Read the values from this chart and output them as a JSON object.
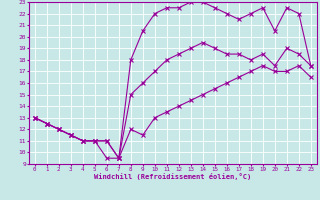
{
  "xlabel": "Windchill (Refroidissement éolien,°C)",
  "bg_color": "#c8e8e8",
  "line_color": "#990099",
  "grid_color": "#ffffff",
  "xlim": [
    -0.5,
    23.5
  ],
  "ylim": [
    9,
    23
  ],
  "xticks": [
    0,
    1,
    2,
    3,
    4,
    5,
    6,
    7,
    8,
    9,
    10,
    11,
    12,
    13,
    14,
    15,
    16,
    17,
    18,
    19,
    20,
    21,
    22,
    23
  ],
  "yticks": [
    9,
    10,
    11,
    12,
    13,
    14,
    15,
    16,
    17,
    18,
    19,
    20,
    21,
    22,
    23
  ],
  "line1_x": [
    0,
    1,
    2,
    3,
    4,
    5,
    6,
    7,
    8,
    9,
    10,
    11,
    12,
    13,
    14,
    15,
    16,
    17,
    18,
    19,
    20,
    21,
    22,
    23
  ],
  "line1_y": [
    13.0,
    12.5,
    12.0,
    11.5,
    11.0,
    11.0,
    11.0,
    9.5,
    12.0,
    11.5,
    13.0,
    13.5,
    14.0,
    14.5,
    15.0,
    15.5,
    16.0,
    16.5,
    17.0,
    17.5,
    17.0,
    17.0,
    17.5,
    16.5
  ],
  "line2_x": [
    0,
    1,
    2,
    3,
    4,
    5,
    6,
    7,
    8,
    9,
    10,
    11,
    12,
    13,
    14,
    15,
    16,
    17,
    18,
    19,
    20,
    21,
    22,
    23
  ],
  "line2_y": [
    13.0,
    12.5,
    12.0,
    11.5,
    11.0,
    11.0,
    11.0,
    9.5,
    18.0,
    20.5,
    22.0,
    22.5,
    22.5,
    23.0,
    23.0,
    22.5,
    22.0,
    21.5,
    22.0,
    22.5,
    20.5,
    22.5,
    22.0,
    17.5
  ],
  "line3_x": [
    0,
    1,
    2,
    3,
    4,
    5,
    6,
    7,
    8,
    9,
    10,
    11,
    12,
    13,
    14,
    15,
    16,
    17,
    18,
    19,
    20,
    21,
    22,
    23
  ],
  "line3_y": [
    13.0,
    12.5,
    12.0,
    11.5,
    11.0,
    11.0,
    9.5,
    9.5,
    15.0,
    16.0,
    17.0,
    18.0,
    18.5,
    19.0,
    19.5,
    19.0,
    18.5,
    18.5,
    18.0,
    18.5,
    17.5,
    19.0,
    18.5,
    17.5
  ]
}
